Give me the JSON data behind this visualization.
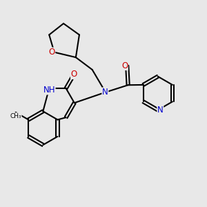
{
  "bg_color": "#e8e8e8",
  "bond_color": "#000000",
  "bond_width": 1.5,
  "atom_colors": {
    "N": "#0000cc",
    "O": "#cc0000",
    "C": "#000000"
  },
  "font_size": 8.5
}
